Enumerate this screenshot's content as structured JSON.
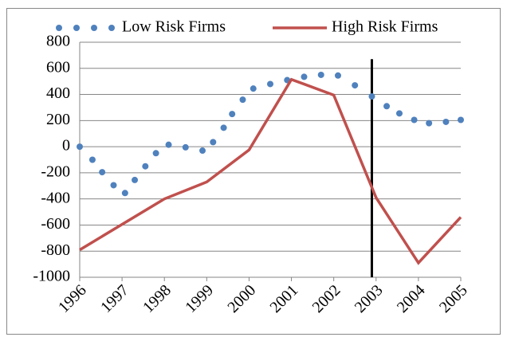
{
  "chart_data": {
    "type": "scatter",
    "series": [
      {
        "name": "Low Risk Firms",
        "color": "#4f81bd",
        "style": "markers",
        "x": [
          1996.0,
          1996.3,
          1996.53,
          1996.8,
          1997.07,
          1997.3,
          1997.55,
          1997.8,
          1998.1,
          1998.5,
          1998.9,
          1999.15,
          1999.4,
          1999.6,
          1999.85,
          2000.1,
          2000.5,
          2000.9,
          2001.3,
          2001.7,
          2002.1,
          2002.5,
          2002.9,
          2003.25,
          2003.55,
          2003.9,
          2004.25,
          2004.65,
          2005.0
        ],
        "values": [
          0,
          -100,
          -195,
          -295,
          -355,
          -255,
          -150,
          -50,
          15,
          -5,
          -30,
          35,
          145,
          250,
          360,
          445,
          480,
          510,
          535,
          550,
          545,
          470,
          385,
          310,
          255,
          205,
          180,
          190,
          205
        ]
      },
      {
        "name": "High Risk Firms",
        "color": "#c0504d",
        "style": "line",
        "x": [
          1996,
          1998,
          1999,
          2000,
          2001,
          2002,
          2003,
          2004,
          2005
        ],
        "values": [
          -790,
          -400,
          -270,
          -25,
          515,
          395,
          -390,
          -890,
          -540
        ]
      }
    ],
    "vline": {
      "x": 2002.9,
      "color": "#000000"
    },
    "xlim": [
      1996,
      2005
    ],
    "xticks": [
      1996,
      1997,
      1998,
      1999,
      2000,
      2001,
      2002,
      2003,
      2004,
      2005
    ],
    "ylim": [
      -1000,
      800
    ],
    "yticks": [
      -1000,
      -800,
      -600,
      -400,
      -200,
      0,
      200,
      400,
      600,
      800
    ],
    "grid": true,
    "legend": "top"
  }
}
